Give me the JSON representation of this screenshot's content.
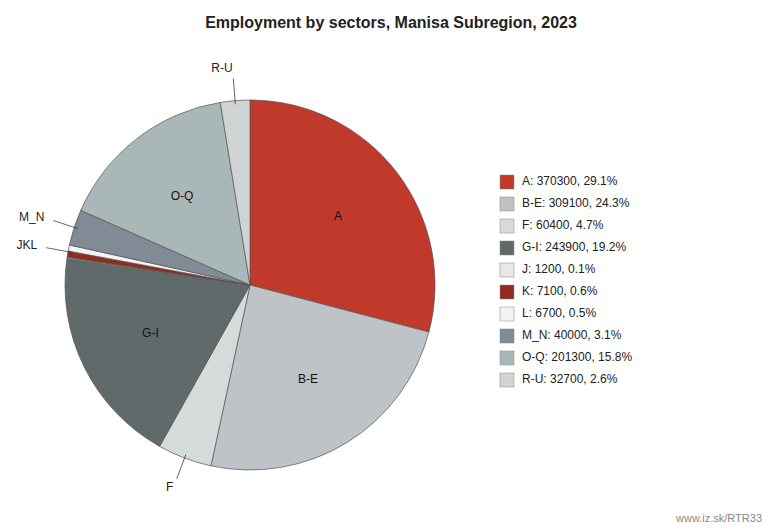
{
  "chart_data": {
    "type": "pie",
    "title": "Employment by sectors, Manisa Subregion, 2023",
    "categories": [
      "A",
      "B-E",
      "F",
      "G-I",
      null,
      null,
      null,
      "M_N",
      "O-Q",
      "R-U"
    ],
    "values": [
      370300,
      309100,
      60400,
      243900,
      1200,
      7100,
      6700,
      40000,
      201300,
      32700
    ],
    "colors": [
      "#c0392b",
      "#bdc3c7",
      "#d5dbdb",
      "#616a6b",
      "#e8e8e8",
      "#922b21",
      "#f2f3f4",
      "#808b96",
      "#aab7b8",
      "#d0d3d4"
    ],
    "legend_labels": [
      "A: 370300, 29.1%",
      "B-E: 309100, 24.3%",
      "F: 60400, 4.7%",
      "G-I: 243900, 19.2%",
      "J: 1200, 0.1%",
      "K: 7100, 0.6%",
      "L: 6700, 0.5%",
      "M_N: 40000, 3.1%",
      "O-Q: 201300, 15.8%",
      "R-U: 32700, 2.6%"
    ],
    "legend": "right",
    "annotations": [
      "JKL",
      "www.iz.sk/RTR33"
    ]
  }
}
